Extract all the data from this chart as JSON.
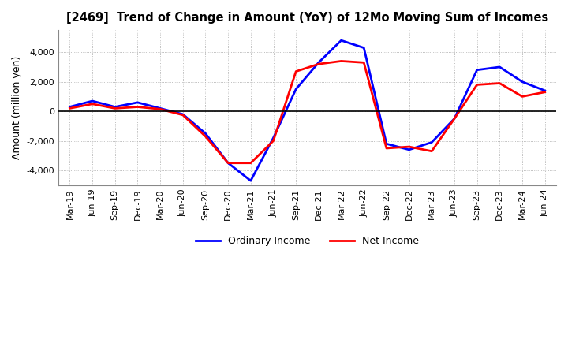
{
  "title": "[2469]  Trend of Change in Amount (YoY) of 12Mo Moving Sum of Incomes",
  "ylabel": "Amount (million yen)",
  "xlim_labels": [
    "Mar-19",
    "Jun-19",
    "Sep-19",
    "Dec-19",
    "Mar-20",
    "Jun-20",
    "Sep-20",
    "Dec-20",
    "Mar-21",
    "Jun-21",
    "Sep-21",
    "Dec-21",
    "Mar-22",
    "Jun-22",
    "Sep-22",
    "Dec-22",
    "Mar-23",
    "Jun-23",
    "Sep-23",
    "Dec-23",
    "Mar-24",
    "Jun-24"
  ],
  "ordinary_income": [
    300,
    700,
    300,
    600,
    200,
    -200,
    -1500,
    -3500,
    -4700,
    -1800,
    1500,
    3300,
    4800,
    4300,
    -2200,
    -2600,
    -2100,
    -500,
    2800,
    3000,
    2000,
    1400
  ],
  "net_income": [
    200,
    500,
    200,
    300,
    150,
    -250,
    -1700,
    -3500,
    -3500,
    -2000,
    2700,
    3200,
    3400,
    3300,
    -2500,
    -2400,
    -2700,
    -500,
    1800,
    1900,
    1000,
    1300
  ],
  "ordinary_color": "#0000ff",
  "net_color": "#ff0000",
  "ylim": [
    -5000,
    5500
  ],
  "yticks": [
    -4000,
    -2000,
    0,
    2000,
    4000
  ],
  "background_color": "#ffffff",
  "grid_color": "#aaaaaa",
  "legend_labels": [
    "Ordinary Income",
    "Net Income"
  ]
}
